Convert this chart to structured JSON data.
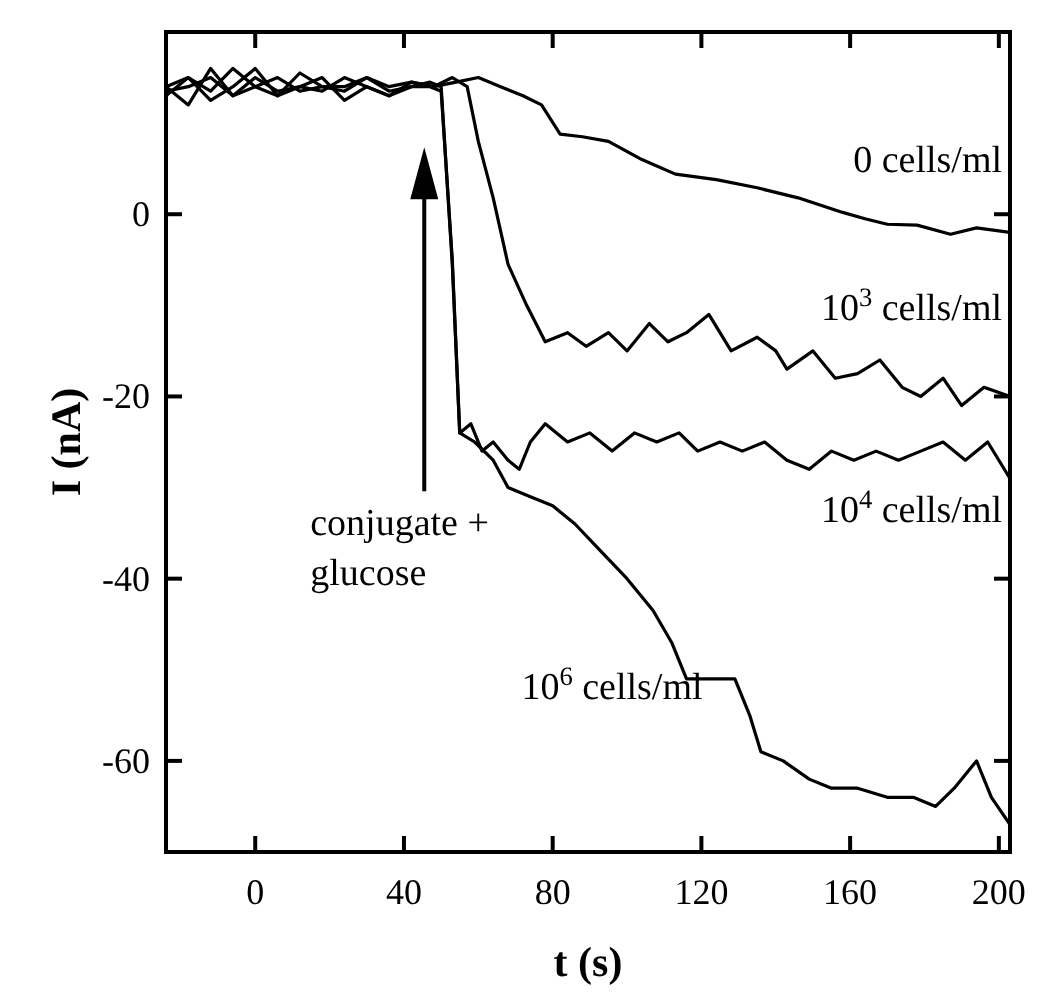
{
  "chart_data": {
    "type": "line",
    "xlabel": "t (s)",
    "ylabel": "I (nA)",
    "xlim": [
      -24,
      203
    ],
    "ylim": [
      -70,
      20
    ],
    "xticks": [
      0,
      40,
      80,
      120,
      160,
      200
    ],
    "yticks": [
      0,
      -20,
      -40,
      -60
    ],
    "grid": false,
    "line_style": "solid",
    "annotations": [
      "conjugate + glucose"
    ],
    "series": [
      {
        "name": "0 cells/ml",
        "color": "#000000",
        "x": [
          -24,
          -18,
          -12,
          -6,
          0,
          6,
          12,
          18,
          24,
          30,
          36,
          42,
          48,
          54,
          60,
          66,
          72,
          77,
          82,
          88,
          95,
          104,
          113,
          124,
          135,
          146,
          158,
          164,
          170,
          178,
          187,
          194,
          203
        ],
        "values": [
          13,
          15,
          13.5,
          16,
          14,
          13,
          15.5,
          14,
          13.5,
          15,
          14,
          14.5,
          14,
          14.5,
          15,
          14,
          13,
          12,
          8.8,
          8.5,
          8,
          6,
          4.4,
          3.8,
          2.9,
          1.8,
          0.2,
          -0.5,
          -1.1,
          -1.2,
          -2.2,
          -1.5,
          -2
        ]
      },
      {
        "name": "10$^{3}$ cells/ml",
        "color": "#000000",
        "x": [
          -24,
          -18,
          -12,
          -6,
          0,
          6,
          12,
          18,
          24,
          30,
          36,
          42,
          48,
          53,
          57,
          60,
          64,
          68,
          73,
          78,
          84,
          89,
          95,
          100,
          106,
          111,
          116,
          122,
          128,
          135,
          140,
          143,
          150,
          156,
          162,
          168,
          174,
          179,
          185,
          190,
          196,
          203
        ],
        "values": [
          14,
          12,
          16,
          13,
          15,
          13.5,
          14,
          15,
          12.5,
          14,
          13,
          14.5,
          14,
          15,
          14,
          8,
          1.8,
          -5.5,
          -10,
          -14,
          -13,
          -14.5,
          -13,
          -15,
          -12,
          -14,
          -13,
          -11,
          -15,
          -13.5,
          -15,
          -17,
          -15,
          -18,
          -17.5,
          -16,
          -19,
          -20,
          -18,
          -21,
          -19,
          -20
        ]
      },
      {
        "name": "10$^{4}$ cells/ml",
        "color": "#000000",
        "x": [
          -24,
          -18,
          -12,
          -6,
          0,
          6,
          12,
          18,
          24,
          30,
          36,
          42,
          47,
          50,
          53,
          55,
          58,
          61,
          64,
          68,
          71,
          74,
          78,
          84,
          90,
          96,
          102,
          108,
          114,
          119,
          125,
          131,
          137,
          143,
          149,
          155,
          161,
          167,
          173,
          179,
          185,
          191,
          197,
          203
        ],
        "values": [
          14,
          15,
          12.5,
          14,
          16,
          13,
          14,
          13.5,
          15,
          14,
          13,
          14,
          14.5,
          14,
          -5.5,
          -24,
          -23,
          -26,
          -25,
          -27,
          -28,
          -25,
          -23,
          -25,
          -24,
          -26,
          -24,
          -25,
          -24,
          -26,
          -25,
          -26,
          -25,
          -27,
          -28,
          -26,
          -27,
          -26,
          -27,
          -26,
          -25,
          -27,
          -25,
          -29
        ]
      },
      {
        "name": "10$^{6}$ cells/ml",
        "color": "#000000",
        "x": [
          -24,
          -18,
          -12,
          -6,
          0,
          6,
          12,
          18,
          24,
          30,
          36,
          42,
          47,
          50,
          53,
          55,
          59,
          64,
          68,
          74,
          80,
          86,
          93,
          100,
          107,
          112,
          116,
          122,
          129,
          133,
          136,
          142,
          149,
          155,
          162,
          170,
          177,
          183,
          188,
          194,
          198,
          203
        ],
        "values": [
          13.5,
          14,
          15,
          13,
          14,
          15,
          13.5,
          14,
          14,
          15,
          13.5,
          14,
          14,
          13.5,
          -5,
          -24,
          -25,
          -27,
          -30,
          -31,
          -32,
          -34,
          -37,
          -40,
          -43.5,
          -47,
          -51,
          -51,
          -51,
          -55,
          -59,
          -60,
          -62,
          -63,
          -63,
          -64,
          -64,
          -65,
          -63,
          -60,
          -64,
          -67
        ]
      }
    ]
  }
}
